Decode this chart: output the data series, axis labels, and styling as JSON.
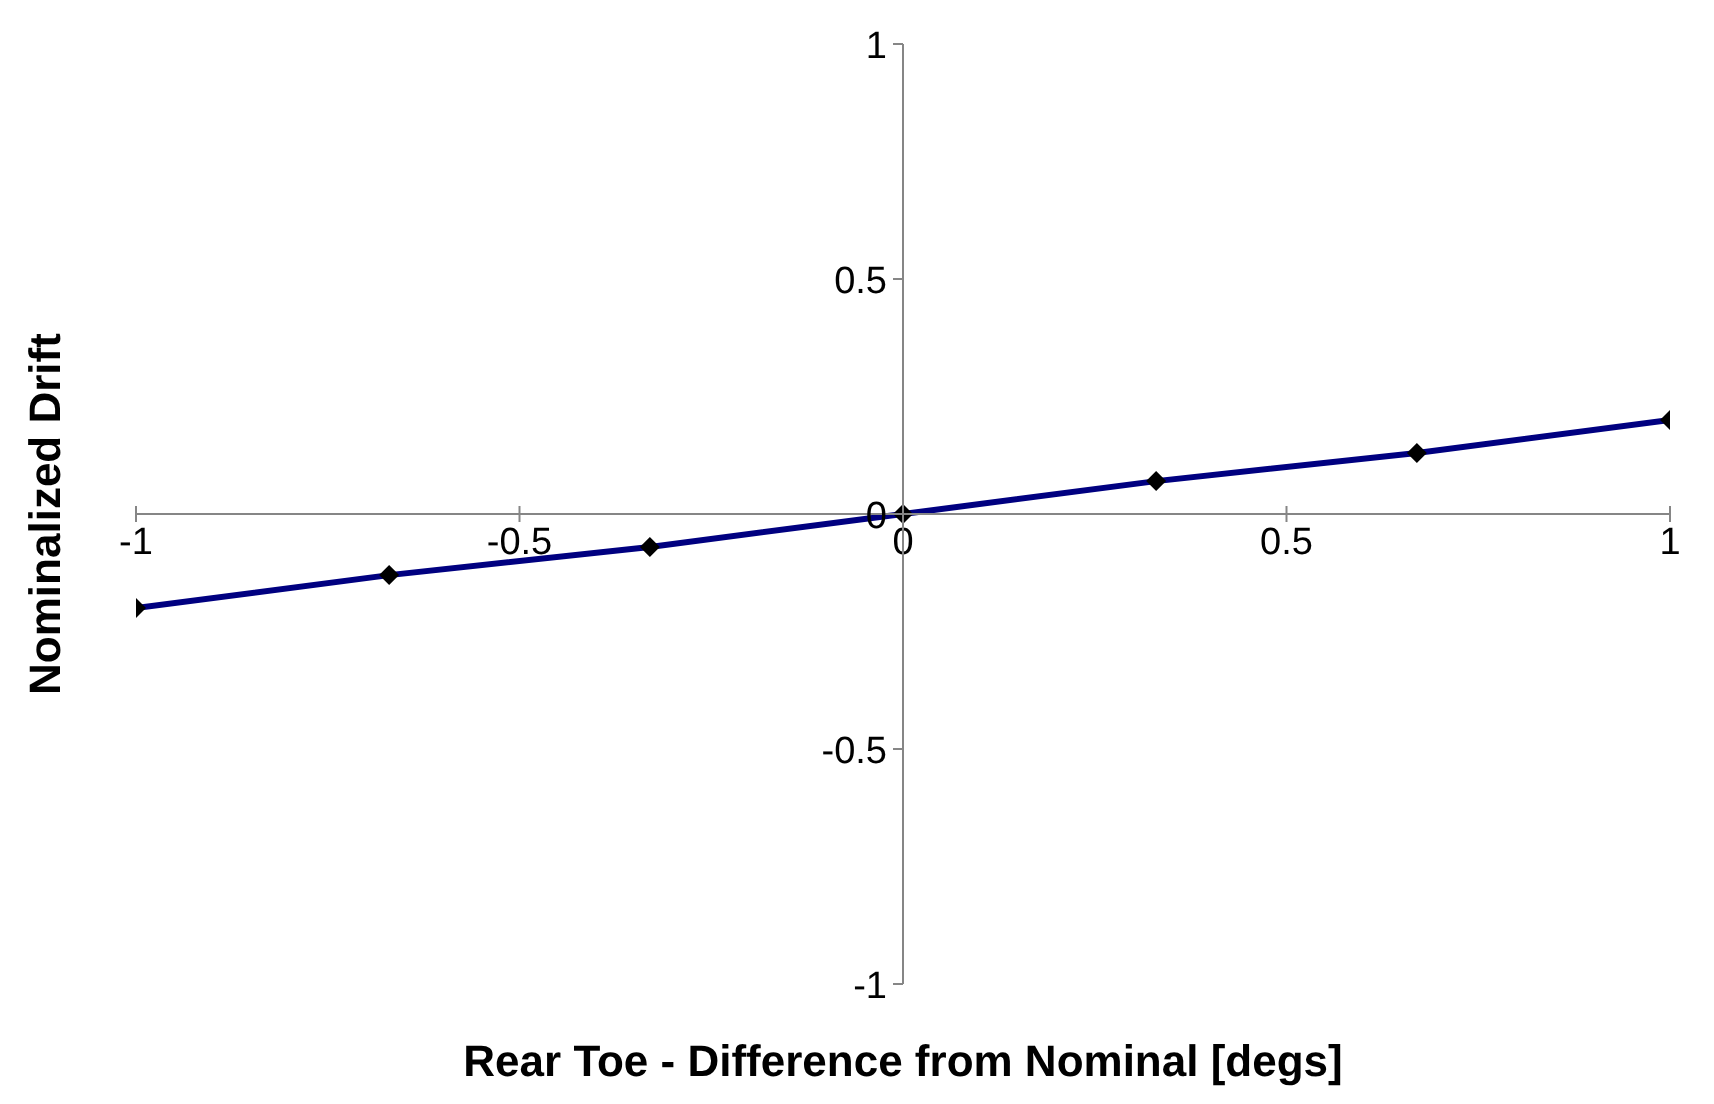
{
  "chart_data": {
    "type": "line",
    "xlabel": "Rear Toe - Difference from Nominal [degs]",
    "ylabel": "Nominalized Drift",
    "x": [
      -1,
      -0.67,
      -0.33,
      0,
      0.33,
      0.67,
      1
    ],
    "series": [
      {
        "color": "#000080",
        "values": [
          -0.2,
          -0.13,
          -0.07,
          0,
          0.07,
          0.13,
          0.2
        ]
      }
    ],
    "xlim": [
      -1,
      1
    ],
    "xticks": [
      -1,
      -0.5,
      0,
      0.5,
      1
    ],
    "ylim": [
      -1,
      1
    ],
    "yticks": [
      -1,
      -0.5,
      0,
      0.5,
      1
    ],
    "marker": "diamond",
    "line_style": "solid",
    "grid": false,
    "legend": false
  }
}
